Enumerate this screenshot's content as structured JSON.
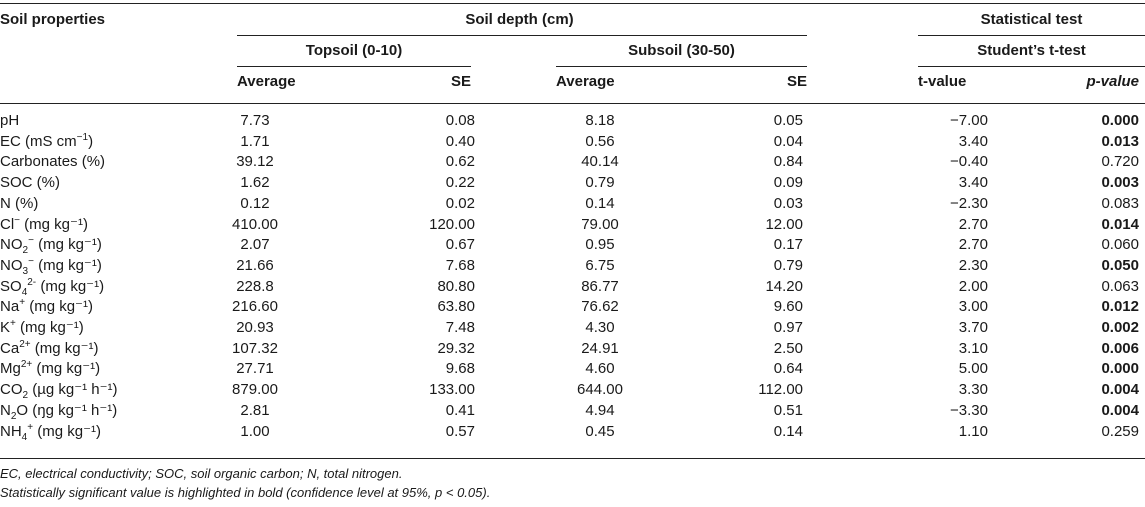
{
  "header": {
    "soil_properties": "Soil properties",
    "soil_depth": "Soil depth (cm)",
    "statistical_test": "Statistical test",
    "topsoil": "Topsoil (0-10)",
    "subsoil": "Subsoil (30-50)",
    "students_t": "Student’s t-test",
    "average_top": "Average",
    "se_top": "SE",
    "average_sub": "Average",
    "se_sub": "SE",
    "t_value": "t-value",
    "p_value": "p-value"
  },
  "rows": [
    {
      "name": "pH",
      "name_sup": "",
      "name_sub": "",
      "name_suffix": "",
      "top_avg": "7.73",
      "top_se": "0.08",
      "sub_avg": "8.18",
      "sub_se": "0.05",
      "t": "−7.00",
      "p": "0.000",
      "significant": true
    },
    {
      "name": "EC (mS cm",
      "name_sup": "−1",
      "name_sub": "",
      "name_suffix": ")",
      "top_avg": "1.71",
      "top_se": "0.40",
      "sub_avg": "0.56",
      "sub_se": "0.04",
      "t": "3.40",
      "p": "0.013",
      "significant": true
    },
    {
      "name": "Carbonates (%)",
      "name_sup": "",
      "name_sub": "",
      "name_suffix": "",
      "top_avg": "39.12",
      "top_se": "0.62",
      "sub_avg": "40.14",
      "sub_se": "0.84",
      "t": "−0.40",
      "p": "0.720",
      "significant": false
    },
    {
      "name": "SOC (%)",
      "name_sup": "",
      "name_sub": "",
      "name_suffix": "",
      "top_avg": "1.62",
      "top_se": "0.22",
      "sub_avg": "0.79",
      "sub_se": "0.09",
      "t": "3.40",
      "p": "0.003",
      "significant": true
    },
    {
      "name": "N (%)",
      "name_sup": "",
      "name_sub": "",
      "name_suffix": "",
      "top_avg": "0.12",
      "top_se": "0.02",
      "sub_avg": "0.14",
      "sub_se": "0.03",
      "t": "−2.30",
      "p": "0.083",
      "significant": false
    },
    {
      "name": "Cl",
      "name_sup": "−",
      "name_sub": "",
      "name_suffix": " (mg kg⁻¹)",
      "top_avg": "410.00",
      "top_se": "120.00",
      "sub_avg": "79.00",
      "sub_se": "12.00",
      "t": "2.70",
      "p": "0.014",
      "significant": true
    },
    {
      "name": "NO",
      "name_sup": "−",
      "name_sub": "2",
      "name_suffix": " (mg kg⁻¹)",
      "top_avg": "2.07",
      "top_se": "0.67",
      "sub_avg": "0.95",
      "sub_se": "0.17",
      "t": "2.70",
      "p": "0.060",
      "significant": false
    },
    {
      "name": "NO",
      "name_sup": "−",
      "name_sub": "3",
      "name_suffix": " (mg kg⁻¹)",
      "top_avg": "21.66",
      "top_se": "7.68",
      "sub_avg": "6.75",
      "sub_se": "0.79",
      "t": "2.30",
      "p": "0.050",
      "significant": true
    },
    {
      "name": "SO",
      "name_sup": "2-",
      "name_sub": "4",
      "name_suffix": " (mg kg⁻¹)",
      "top_avg": "228.8",
      "top_se": "80.80",
      "sub_avg": "86.77",
      "sub_se": "14.20",
      "t": "2.00",
      "p": "0.063",
      "significant": false
    },
    {
      "name": "Na",
      "name_sup": "+",
      "name_sub": "",
      "name_suffix": " (mg kg⁻¹)",
      "top_avg": "216.60",
      "top_se": "63.80",
      "sub_avg": "76.62",
      "sub_se": "9.60",
      "t": "3.00",
      "p": "0.012",
      "significant": true
    },
    {
      "name": "K",
      "name_sup": "+",
      "name_sub": "",
      "name_suffix": " (mg kg⁻¹)",
      "top_avg": "20.93",
      "top_se": "7.48",
      "sub_avg": "4.30",
      "sub_se": "0.97",
      "t": "3.70",
      "p": "0.002",
      "significant": true
    },
    {
      "name": "Ca",
      "name_sup": "2+",
      "name_sub": "",
      "name_suffix": " (mg kg⁻¹)",
      "top_avg": "107.32",
      "top_se": "29.32",
      "sub_avg": "24.91",
      "sub_se": "2.50",
      "t": "3.10",
      "p": "0.006",
      "significant": true
    },
    {
      "name": "Mg",
      "name_sup": "2+",
      "name_sub": "",
      "name_suffix": " (mg kg⁻¹)",
      "top_avg": "27.71",
      "top_se": "9.68",
      "sub_avg": "4.60",
      "sub_se": "0.64",
      "t": "5.00",
      "p": "0.000",
      "significant": true
    },
    {
      "name": "CO",
      "name_sup": "",
      "name_sub": "2",
      "name_suffix": " (µg kg⁻¹ h⁻¹)",
      "top_avg": "879.00",
      "top_se": "133.00",
      "sub_avg": "644.00",
      "sub_se": "112.00",
      "t": "3.30",
      "p": "0.004",
      "significant": true
    },
    {
      "name": "N",
      "name_sup": "",
      "name_sub": "2",
      "name_suffix": "O (ŋg kg⁻¹ h⁻¹)",
      "top_avg": "2.81",
      "top_se": "0.41",
      "sub_avg": "4.94",
      "sub_se": "0.51",
      "t": "−3.30",
      "p": "0.004",
      "significant": true
    },
    {
      "name": "NH",
      "name_sup": "+",
      "name_sub": "4",
      "name_suffix": " (mg kg⁻¹)",
      "top_avg": "1.00",
      "top_se": "0.57",
      "sub_avg": "0.45",
      "sub_se": "0.14",
      "t": "1.10",
      "p": "0.259",
      "significant": false
    }
  ],
  "footnotes": [
    "EC, electrical conductivity; SOC, soil organic carbon; N, total nitrogen.",
    "Statistically significant value is highlighted in bold (confidence level at 95%, p < 0.05)."
  ]
}
